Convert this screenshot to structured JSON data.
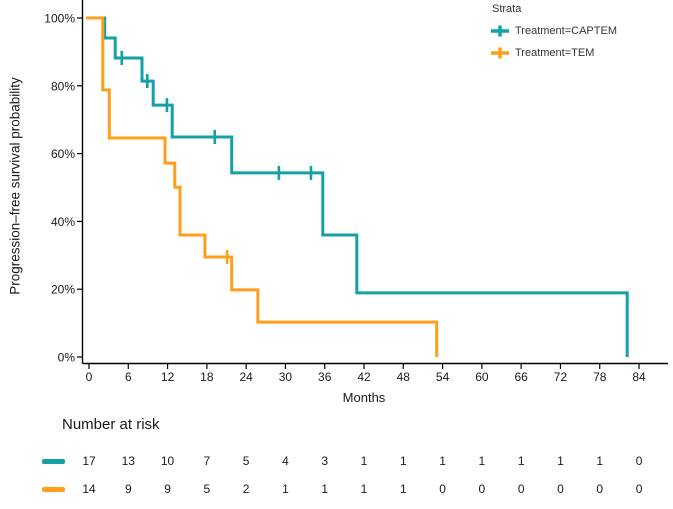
{
  "figure": {
    "y_axis_label": "Progression–free survival probability",
    "x_axis_label": "Months",
    "legend": {
      "title": "Strata",
      "items": [
        {
          "label": "Treatment=CAPTEM",
          "color": "#14A0A4"
        },
        {
          "label": "Treatment=TEM",
          "color": "#FF9E1B"
        }
      ]
    },
    "risk_table": {
      "title": "Number at risk",
      "rows": [
        {
          "name": "Treatment=CAPTEM",
          "color": "#14A0A4",
          "counts": [
            17,
            13,
            10,
            7,
            5,
            4,
            3,
            1,
            1,
            1,
            1,
            1,
            1,
            1,
            0
          ]
        },
        {
          "name": "Treatment=TEM",
          "color": "#FF9E1B",
          "counts": [
            14,
            9,
            9,
            5,
            2,
            1,
            1,
            1,
            1,
            0,
            0,
            0,
            0,
            0,
            0
          ]
        }
      ]
    }
  },
  "chart_data": {
    "type": "line",
    "subtype": "kaplan-meier-step-curve",
    "title": "",
    "xlabel": "Months",
    "ylabel": "Progression–free survival probability",
    "xlim": [
      0,
      84
    ],
    "x_ticks": [
      0,
      6,
      12,
      18,
      24,
      30,
      36,
      42,
      48,
      54,
      60,
      66,
      72,
      78,
      84
    ],
    "ylim": [
      0,
      100
    ],
    "y_ticks": [
      0,
      20,
      40,
      60,
      80,
      100
    ],
    "y_tick_format": "percent",
    "grid": false,
    "legend_position": "top-right",
    "series": [
      {
        "name": "Treatment=CAPTEM",
        "color": "#14A0A4",
        "steps": [
          [
            0,
            100
          ],
          [
            2.4,
            94.1
          ],
          [
            4.0,
            88.2
          ],
          [
            8.1,
            81.4
          ],
          [
            9.8,
            74.3
          ],
          [
            12.7,
            64.9
          ],
          [
            21.8,
            54.3
          ],
          [
            35.7,
            36.0
          ],
          [
            40.9,
            18.9
          ],
          [
            82.2,
            0
          ]
        ],
        "censors": [
          [
            5.0,
            88.2
          ],
          [
            8.9,
            81.4
          ],
          [
            11.9,
            74.3
          ],
          [
            19.2,
            64.9
          ],
          [
            29.0,
            54.3
          ],
          [
            33.9,
            54.3
          ]
        ]
      },
      {
        "name": "Treatment=TEM",
        "color": "#FF9E1B",
        "steps": [
          [
            0,
            100
          ],
          [
            2.1,
            78.8
          ],
          [
            3.1,
            64.6
          ],
          [
            11.6,
            57.2
          ],
          [
            13.1,
            50.1
          ],
          [
            13.9,
            36.0
          ],
          [
            17.7,
            29.5
          ],
          [
            21.8,
            19.8
          ],
          [
            25.8,
            10.3
          ],
          [
            53.1,
            0
          ]
        ],
        "censors": [
          [
            21.1,
            29.5
          ]
        ]
      }
    ],
    "number_at_risk": {
      "times": [
        0,
        6,
        12,
        18,
        24,
        30,
        36,
        42,
        48,
        54,
        60,
        66,
        72,
        78,
        84
      ],
      "groups": [
        {
          "name": "Treatment=CAPTEM",
          "counts": [
            17,
            13,
            10,
            7,
            5,
            4,
            3,
            1,
            1,
            1,
            1,
            1,
            1,
            1,
            0
          ]
        },
        {
          "name": "Treatment=TEM",
          "counts": [
            14,
            9,
            9,
            5,
            2,
            1,
            1,
            1,
            1,
            0,
            0,
            0,
            0,
            0,
            0
          ]
        }
      ]
    }
  }
}
